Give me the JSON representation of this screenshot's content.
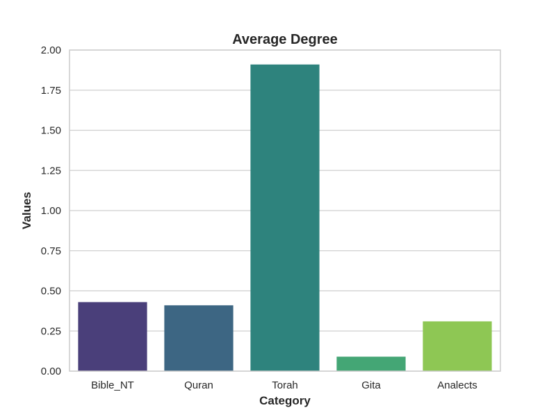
{
  "chart_data": {
    "type": "bar",
    "title": "Average Degree",
    "xlabel": "Category",
    "ylabel": "Values",
    "categories": [
      "Bible_NT",
      "Quran",
      "Torah",
      "Gita",
      "Analects"
    ],
    "values": [
      0.43,
      0.41,
      1.91,
      0.09,
      0.31
    ],
    "colors": [
      "#4a3f7a",
      "#3d6683",
      "#2e837d",
      "#44a675",
      "#8ec754"
    ],
    "ylim": [
      0,
      2.0
    ],
    "yticks": [
      "0.00",
      "0.25",
      "0.50",
      "0.75",
      "1.00",
      "1.25",
      "1.50",
      "1.75",
      "2.00"
    ],
    "grid": true,
    "legend": "none"
  }
}
